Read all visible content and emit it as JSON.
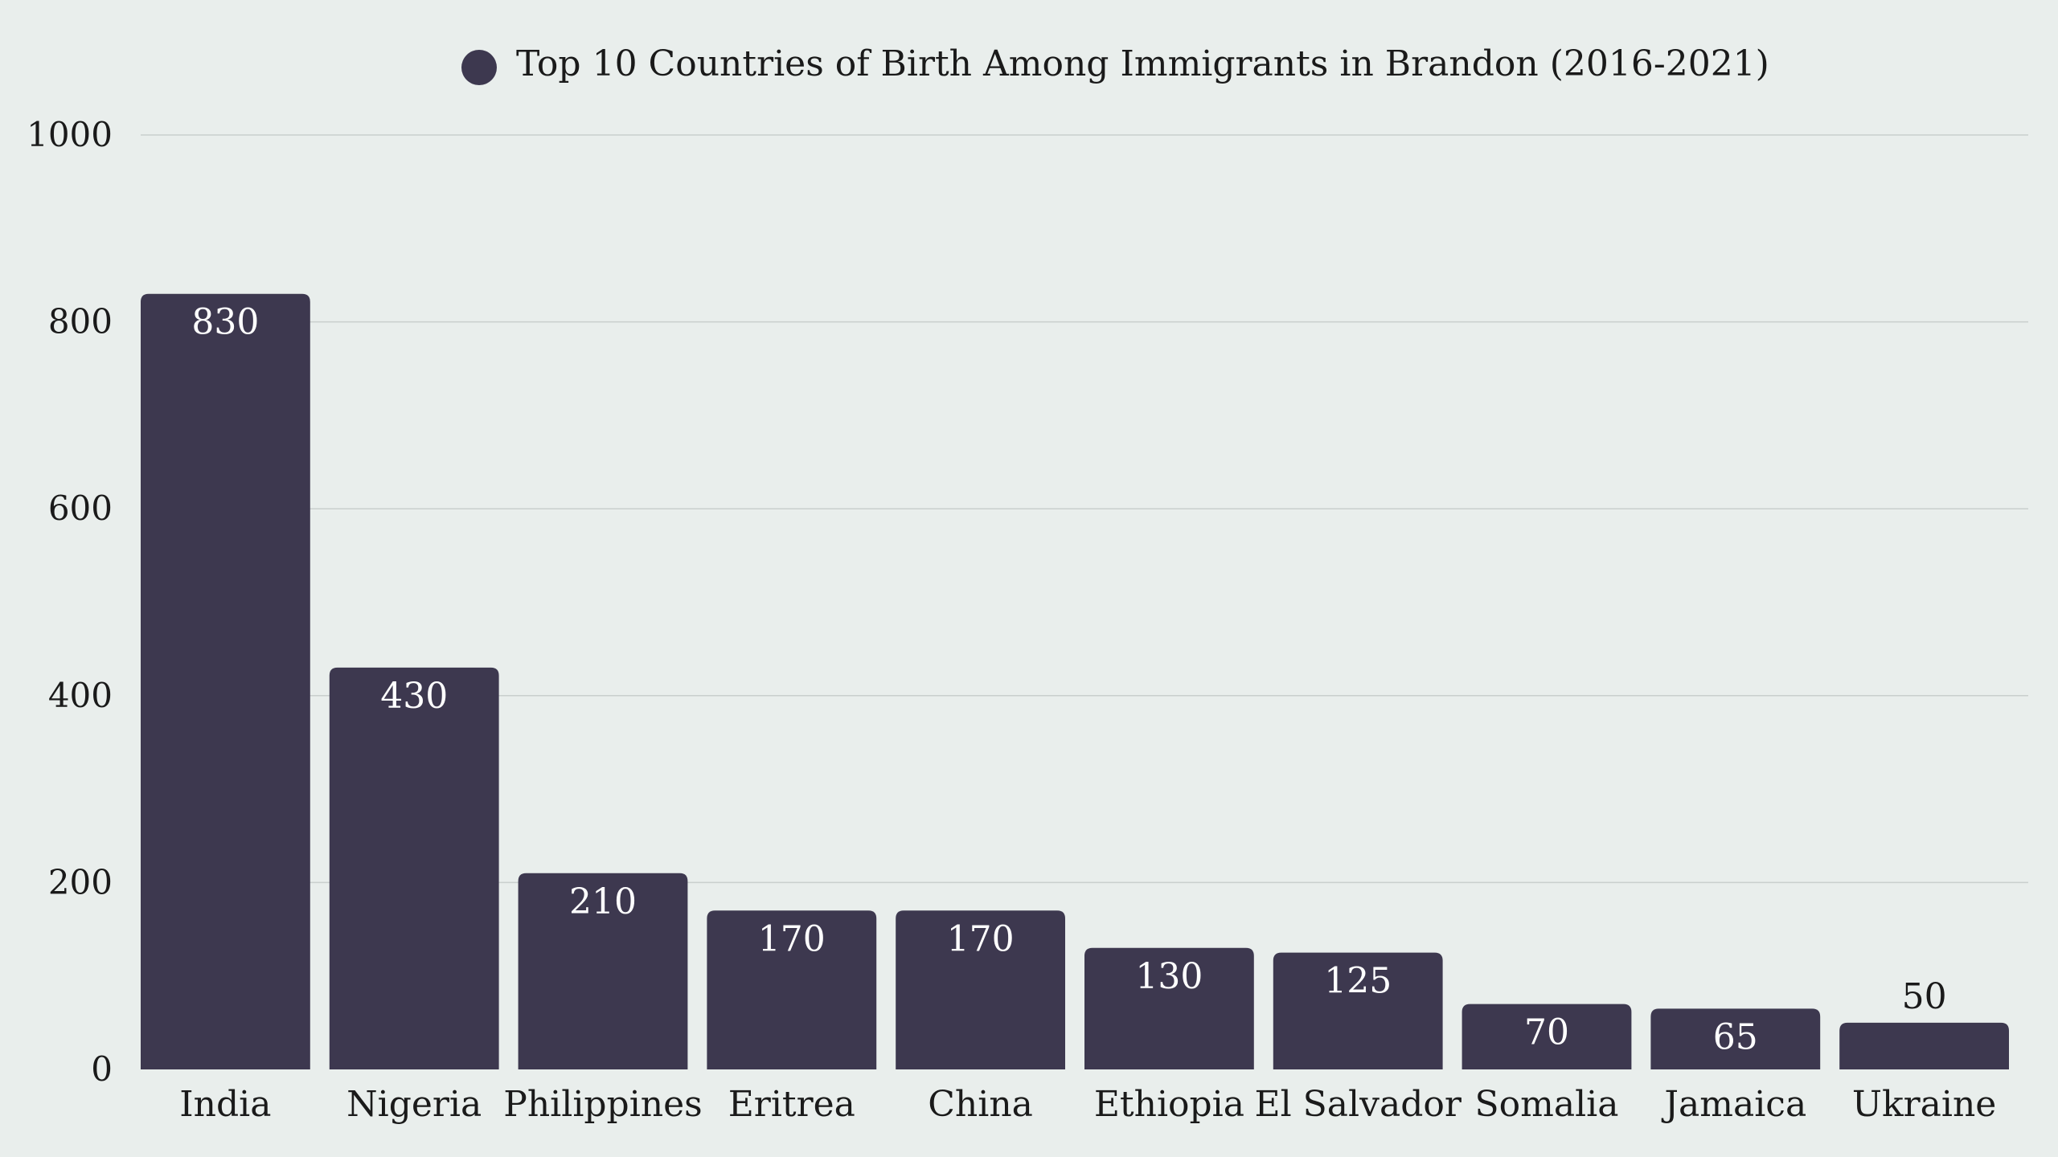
{
  "chart_data": {
    "type": "bar",
    "categories": [
      "India",
      "Nigeria",
      "Philippines",
      "Eritrea",
      "China",
      "Ethiopia",
      "El Salvador",
      "Somalia",
      "Jamaica",
      "Ukraine"
    ],
    "series": [
      {
        "name": "Top 10 Countries of Birth Among Immigrants in Brandon (2016-2021)",
        "values": [
          830,
          430,
          210,
          170,
          170,
          130,
          125,
          70,
          65,
          50
        ],
        "color": "#3D384F"
      }
    ],
    "ylim": [
      0,
      1000
    ],
    "yticks": [
      "0",
      "200",
      "400",
      "600",
      "800",
      "1000"
    ],
    "grid": true,
    "legend_position": "top-center",
    "colors": {
      "background": "#E9EEEC",
      "bar": "#3D384F",
      "grid": "#C9CFCD",
      "label_inside": "#FFFFFF",
      "text": "#1A1A1A"
    }
  }
}
